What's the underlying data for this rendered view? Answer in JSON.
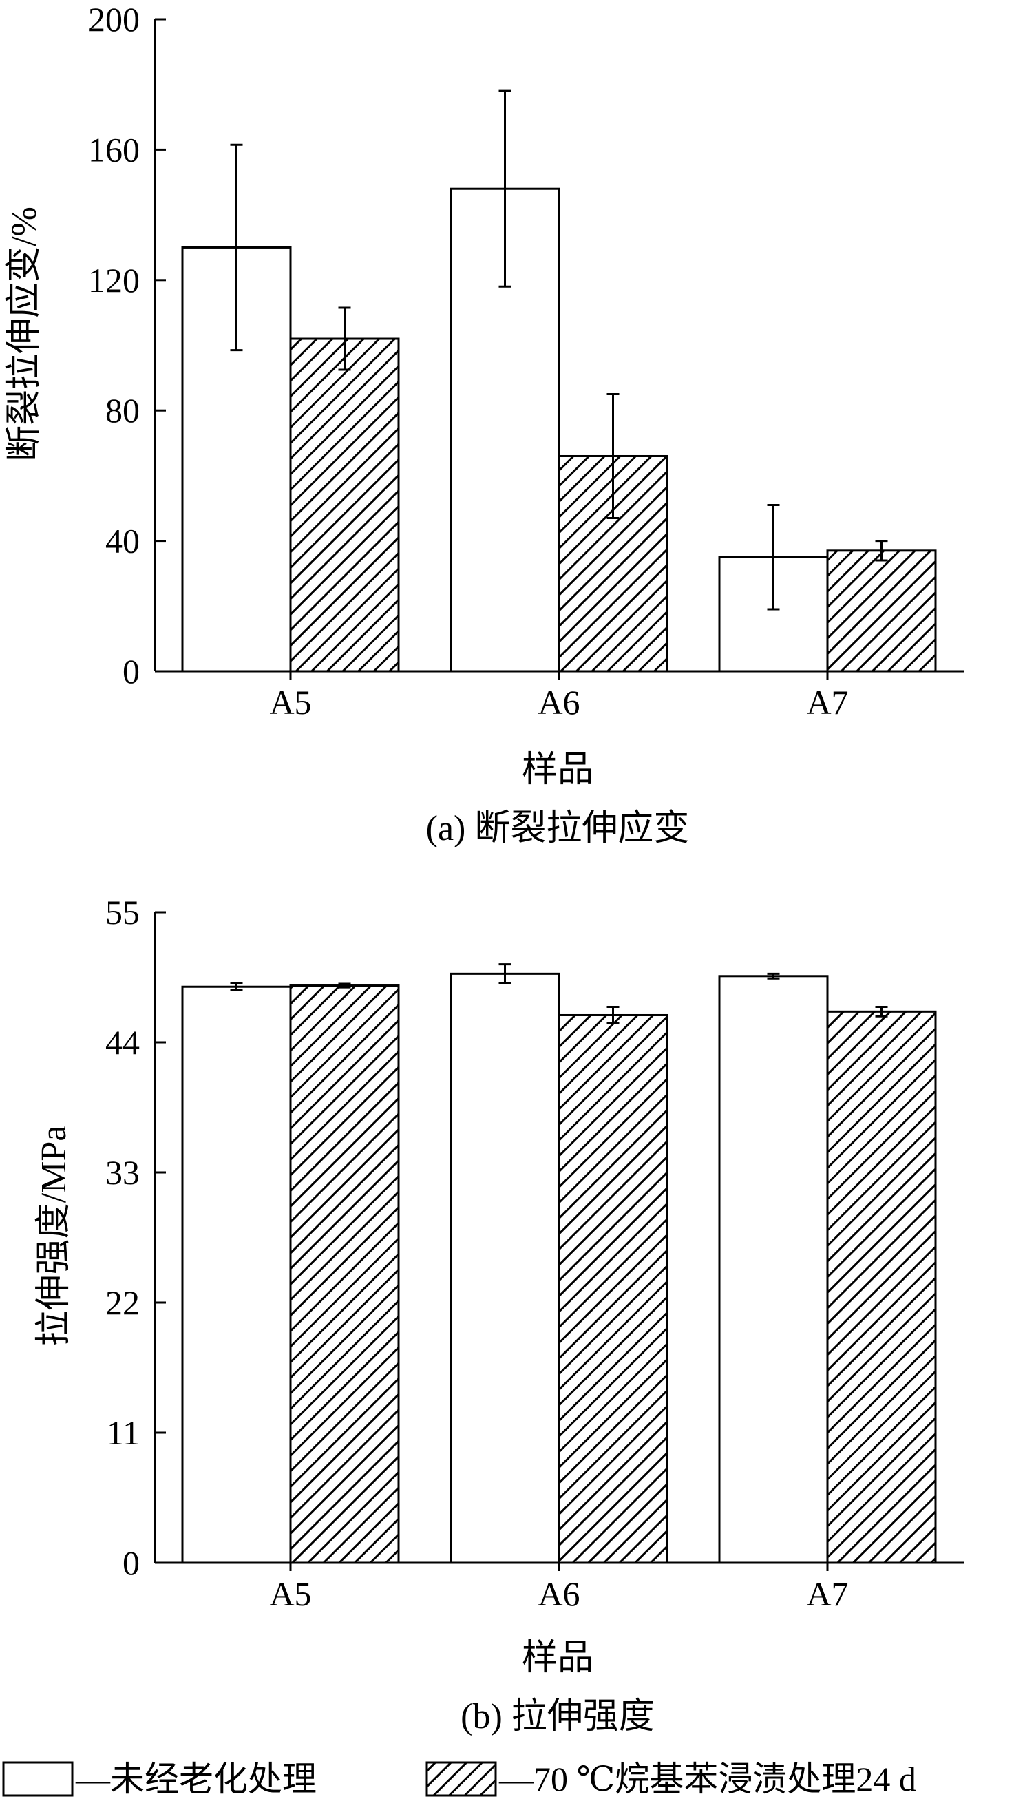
{
  "chart_data": [
    {
      "type": "bar",
      "caption": "(a) 断裂拉伸应变",
      "xlabel": "样品",
      "ylabel": "断裂拉伸应变/%",
      "ylim": [
        0,
        200
      ],
      "yticks": [
        0,
        40,
        80,
        120,
        160,
        200
      ],
      "categories": [
        "A5",
        "A6",
        "A7"
      ],
      "series": [
        {
          "name": "—未经老化处理",
          "fill": "white",
          "values": [
            130,
            148,
            35
          ],
          "errors": [
            31.5,
            30,
            16
          ]
        },
        {
          "name": "—70 ℃烷基苯浸渍处理24 d",
          "fill": "hatch",
          "values": [
            102,
            66,
            37
          ],
          "errors": [
            9.5,
            19,
            3
          ]
        }
      ]
    },
    {
      "type": "bar",
      "caption": "(b) 拉伸强度",
      "xlabel": "样品",
      "ylabel": "拉伸强度/MPa",
      "ylim": [
        0,
        55
      ],
      "yticks": [
        0,
        11,
        22,
        33,
        44,
        55
      ],
      "categories": [
        "A5",
        "A6",
        "A7"
      ],
      "series": [
        {
          "name": "—未经老化处理",
          "fill": "white",
          "values": [
            48.7,
            49.8,
            49.6
          ],
          "errors": [
            0.3,
            0.8,
            0.2
          ]
        },
        {
          "name": "—70 ℃烷基苯浸渍处理24 d",
          "fill": "hatch",
          "values": [
            48.8,
            46.3,
            46.6
          ],
          "errors": [
            0.15,
            0.7,
            0.4
          ]
        }
      ]
    }
  ],
  "legend": [
    {
      "label": "—未经老化处理",
      "fill": "white"
    },
    {
      "label": "—70 ℃烷基苯浸渍处理24 d",
      "fill": "hatch"
    }
  ],
  "colors": {
    "stroke": "#000000",
    "background": "#ffffff"
  }
}
